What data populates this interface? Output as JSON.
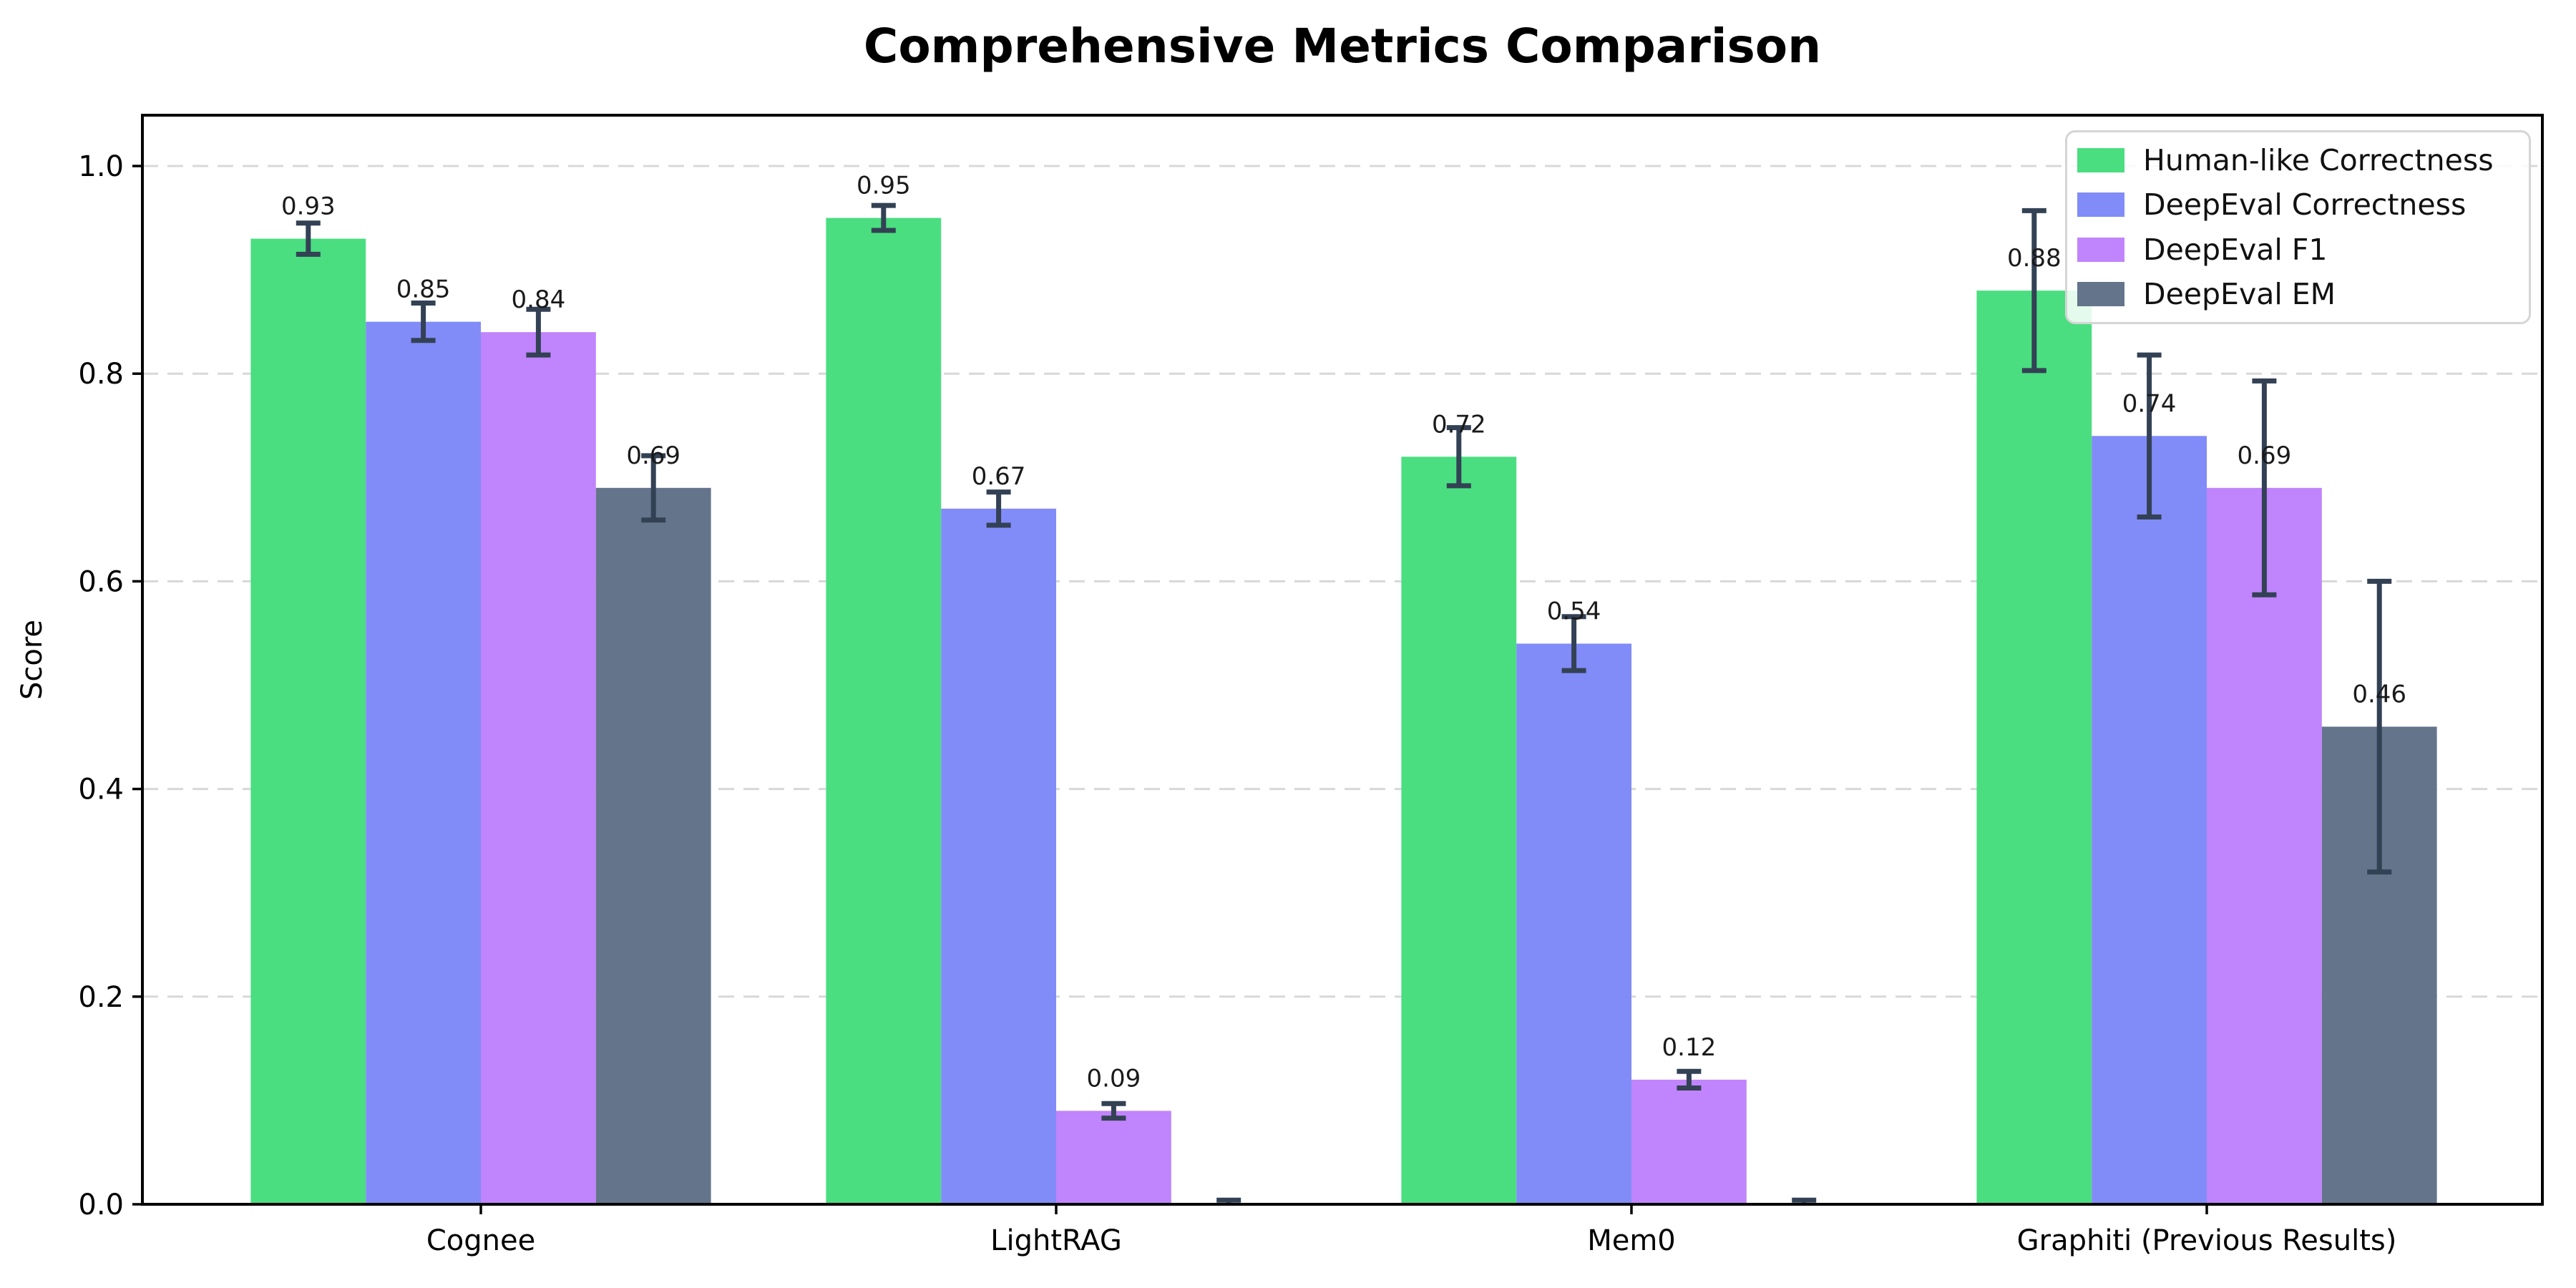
{
  "chart_data": {
    "type": "bar",
    "title": "Comprehensive Metrics Comparison",
    "xlabel": "",
    "ylabel": "Score",
    "categories": [
      "Cognee",
      "LightRAG",
      "Mem0",
      "Graphiti (Previous Results)"
    ],
    "series": [
      {
        "name": "Human-like Correctness",
        "color": "#4ade80",
        "values": [
          0.93,
          0.95,
          0.72,
          0.88
        ],
        "errors": [
          0.015,
          0.012,
          0.028,
          0.077
        ],
        "labels": [
          "0.93",
          "0.95",
          "0.72",
          "0.88"
        ]
      },
      {
        "name": "DeepEval Correctness",
        "color": "#818cf8",
        "values": [
          0.85,
          0.67,
          0.54,
          0.74
        ],
        "errors": [
          0.018,
          0.016,
          0.026,
          0.078
        ],
        "labels": [
          "0.85",
          "0.67",
          "0.54",
          "0.74"
        ]
      },
      {
        "name": "DeepEval F1",
        "color": "#c084fc",
        "values": [
          0.84,
          0.09,
          0.12,
          0.69
        ],
        "errors": [
          0.022,
          0.007,
          0.008,
          0.103
        ],
        "labels": [
          "0.84",
          "0.09",
          "0.12",
          "0.69"
        ]
      },
      {
        "name": "DeepEval EM",
        "color": "#64748b",
        "values": [
          0.69,
          0.0,
          0.0,
          0.46
        ],
        "errors": [
          0.031,
          0.004,
          0.004,
          0.14
        ],
        "labels": [
          "0.69",
          "",
          "",
          "0.46"
        ]
      }
    ],
    "ylim": [
      0.0,
      1.05
    ],
    "yticks": [
      0.0,
      0.2,
      0.4,
      0.6,
      0.8,
      1.0
    ],
    "ytick_labels": [
      "0.0",
      "0.2",
      "0.4",
      "0.6",
      "0.8",
      "1.0"
    ],
    "grid": "horizontal-dashed",
    "grid_color": "#d8d8d8",
    "legend_position": "upper right",
    "bar_width_fraction": 0.2,
    "error_bar_color": "#334155",
    "value_label_color": "#1a1a1a",
    "axis_color": "#000000"
  }
}
